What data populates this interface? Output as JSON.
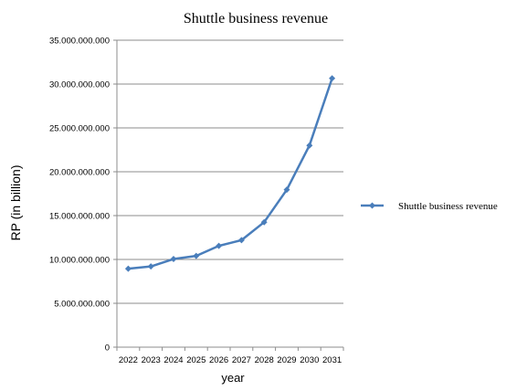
{
  "chart_data": {
    "type": "line",
    "title": "Shuttle business revenue",
    "xlabel": "year",
    "ylabel": "RP (in billion)",
    "categories": [
      "2022",
      "2023",
      "2024",
      "2025",
      "2026",
      "2027",
      "2028",
      "2029",
      "2030",
      "2031"
    ],
    "series": [
      {
        "name": "Shuttle business revenue",
        "values": [
          8950000000,
          9200000000,
          10050000000,
          10400000000,
          11550000000,
          12200000000,
          14250000000,
          17950000000,
          23000000000,
          30650000000
        ]
      }
    ],
    "ylim": [
      0,
      35000000000
    ],
    "yticks": [
      0,
      5000000000,
      10000000000,
      15000000000,
      20000000000,
      25000000000,
      30000000000,
      35000000000
    ],
    "ytick_labels": [
      "0",
      "5.000.000.000",
      "10.000.000.000",
      "15.000.000.000",
      "20.000.000.000",
      "25.000.000.000",
      "30.000.000.000",
      "35.000.000.000"
    ],
    "grid": true,
    "legend": "right",
    "color": "#4a7ebb"
  }
}
